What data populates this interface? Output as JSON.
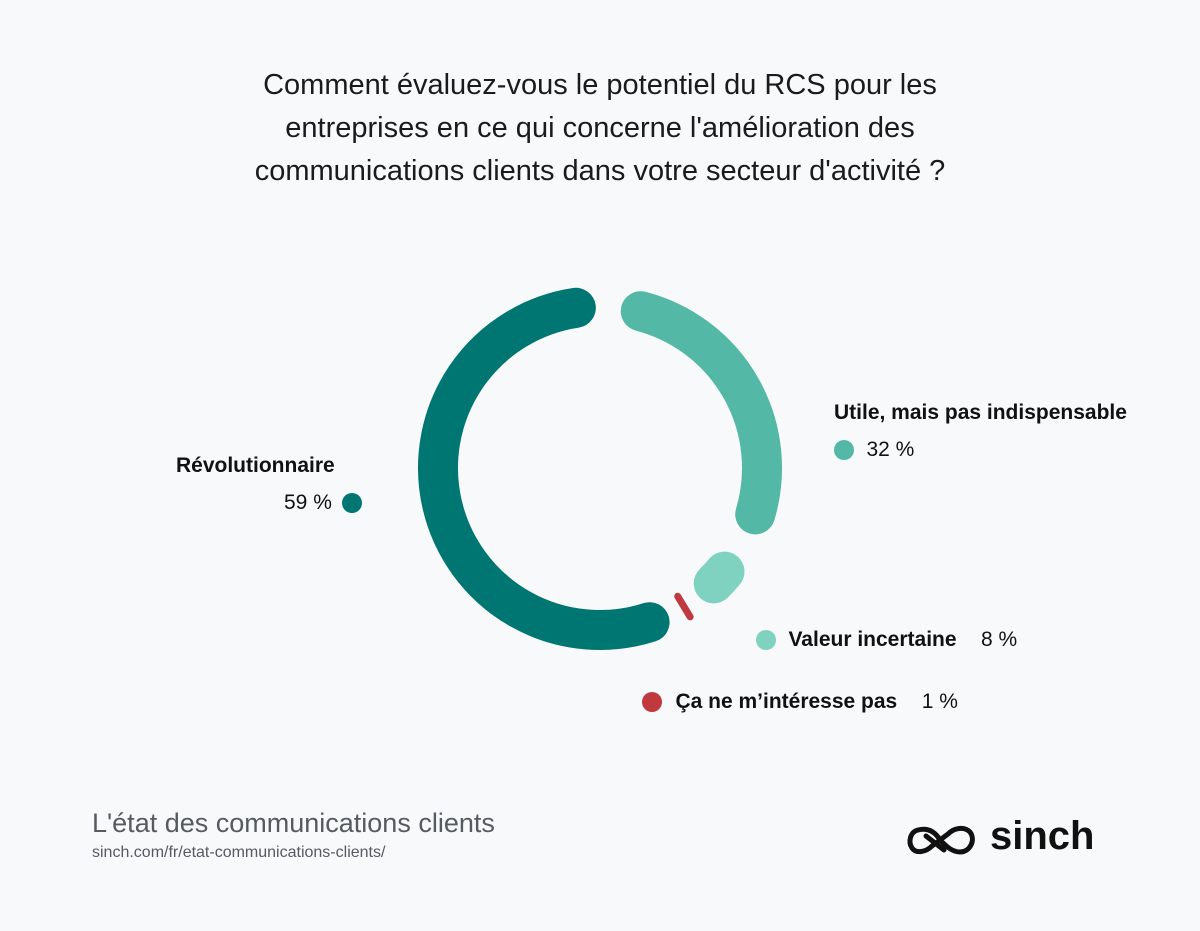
{
  "title_lines": [
    "Comment évaluez-vous le potentiel du RCS pour les",
    "entreprises en ce qui concerne l'amélioration des",
    "communications clients dans votre secteur d'activité ?"
  ],
  "chart_data": {
    "type": "pie",
    "series": [
      {
        "name": "Révolutionnaire",
        "value": 59,
        "label": "59 %",
        "color": "#007672"
      },
      {
        "name": "Utile, mais pas indispensable",
        "value": 32,
        "label": "32 %",
        "color": "#53b8a6"
      },
      {
        "name": "Valeur incertaine",
        "value": 8,
        "label": "8 %",
        "color": "#7fd2bf"
      },
      {
        "name": "Ça ne m’intéresse pas",
        "value": 1,
        "label": "1 %",
        "color": "#c0393e"
      }
    ],
    "donut": true
  },
  "footer": {
    "title": "L'état des communications clients",
    "url": "sinch.com/fr/etat-communications-clients/"
  },
  "logo": {
    "text": "sinch",
    "icon": "sinch-infinity-icon"
  }
}
